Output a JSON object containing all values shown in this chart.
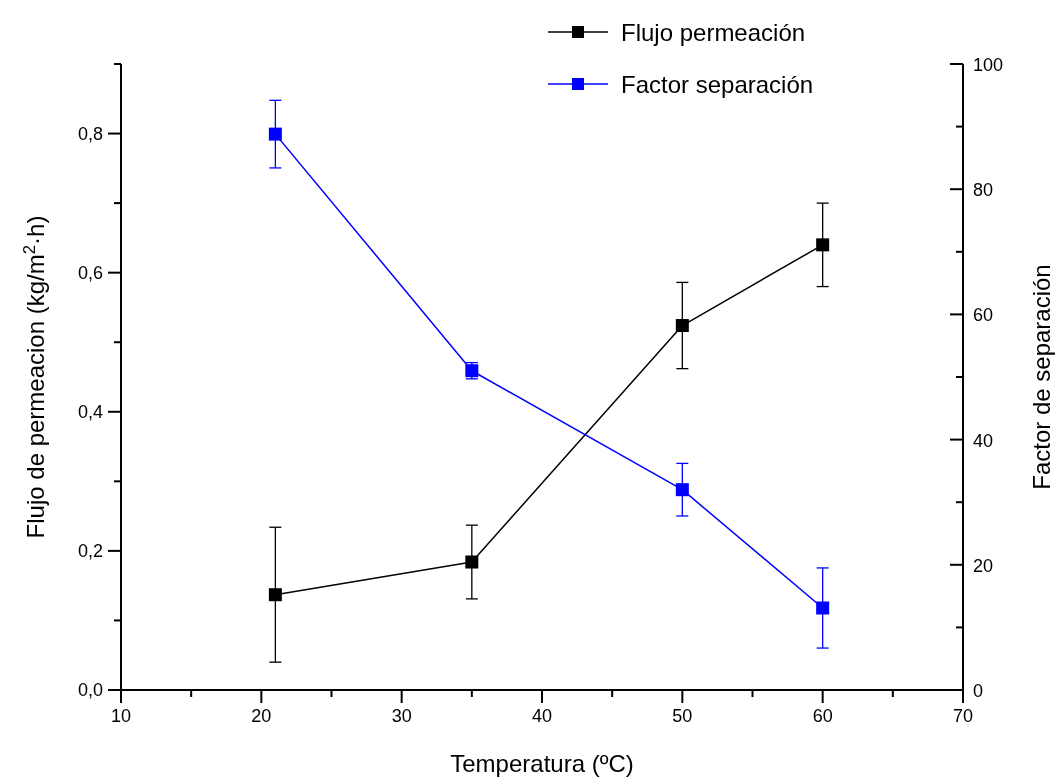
{
  "chart_data": {
    "type": "line",
    "xlabel": "Temperatura (ºC)",
    "ylabel": "Flujo de permeacion (kg/m$^{2}$·h)",
    "y2label": "Factor de separación",
    "x": [
      21,
      35,
      50,
      60
    ],
    "series": [
      {
        "name": "Flujo permeación",
        "color": "#000000",
        "values": [
          0.137,
          0.184,
          0.524,
          0.64
        ],
        "errors": [
          0.097,
          0.053,
          0.062,
          0.06
        ]
      },
      {
        "name": "Factor separación",
        "color": "#0000ff",
        "axis": "y2",
        "values": [
          88.8,
          51.0,
          32.0,
          13.1
        ],
        "errors": [
          5.4,
          1.3,
          4.2,
          6.4
        ]
      }
    ],
    "xlim": [
      10,
      70
    ],
    "xticks": [
      10,
      {
        "value": 15,
        "label": null
      },
      20,
      {
        "value": 25,
        "label": null
      },
      30,
      {
        "value": 35,
        "label": null
      },
      40,
      {
        "value": 45,
        "label": null
      },
      50,
      {
        "value": 55,
        "label": null
      },
      60,
      {
        "value": 65,
        "label": null
      },
      70
    ],
    "ylim": [
      0,
      0.9
    ],
    "yticks": [
      {
        "value": 0,
        "label": "0,0"
      },
      {
        "value": 0.1,
        "label": null
      },
      {
        "value": 0.2,
        "label": "0,2"
      },
      {
        "value": 0.3,
        "label": null
      },
      {
        "value": 0.4,
        "label": "0,4"
      },
      {
        "value": 0.5,
        "label": null
      },
      {
        "value": 0.6,
        "label": "0,6"
      },
      {
        "value": 0.7,
        "label": null
      },
      {
        "value": 0.8,
        "label": "0,8"
      },
      {
        "value": 0.9,
        "label": null
      }
    ],
    "y2lim": [
      0,
      100
    ],
    "y2ticks": [
      0,
      {
        "value": 10,
        "label": null
      },
      20,
      {
        "value": 30,
        "label": null
      },
      40,
      {
        "value": 50,
        "label": null
      },
      60,
      {
        "value": 70,
        "label": null
      },
      80,
      {
        "value": 90,
        "label": null
      },
      100
    ],
    "legend": "top right",
    "marker": "square",
    "line_style": "solid",
    "grid": false
  }
}
